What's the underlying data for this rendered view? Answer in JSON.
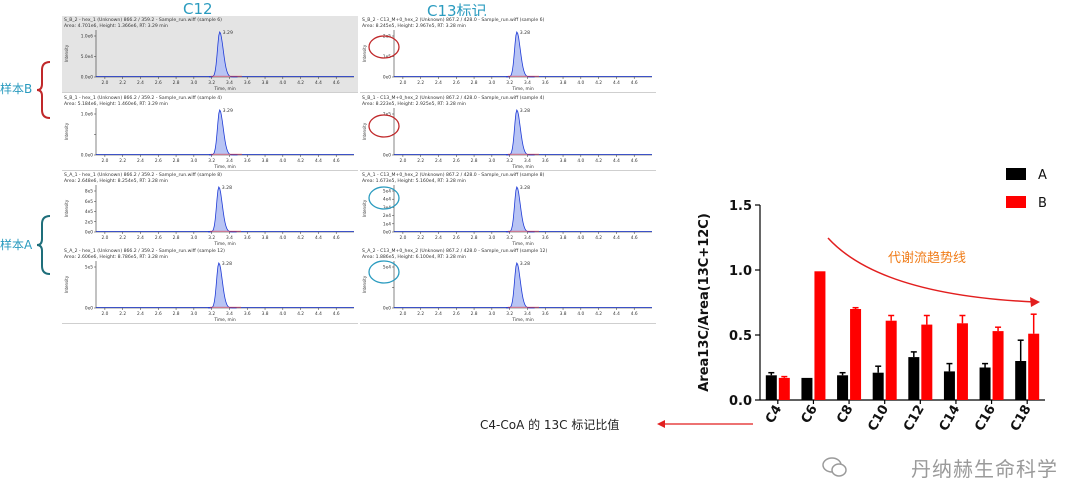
{
  "column_titles": {
    "c12": "C12",
    "c13": "C13标记"
  },
  "sample_labels": {
    "b": "样本B",
    "a": "样本A"
  },
  "panels": {
    "c12": [
      {
        "header1": "S_B_2 - hex_1 (Unknown) 866.2 / 359.2 - Sample_run.wiff (sample 6)",
        "header2": "Area: 4.701e6, Height: 1.366e6, RT: 3.29 min",
        "yticks": [
          "1.0e6",
          "5.0e4",
          "0.0e0"
        ],
        "peak_label": "3.29"
      },
      {
        "header1": "S_B_1 - hex_1 (Unknown) 866.2 / 359.2 - Sample_run.wiff (sample 4)",
        "header2": "Area: 5.184e6, Height: 1.460e6, RT: 3.29 min",
        "yticks": [
          "1.0e6",
          "",
          "0.0e0"
        ],
        "peak_label": "3.29"
      },
      {
        "header1": "S_A_1 - hex_1 (Unknown) 866.2 / 359.2 - Sample_run.wiff (sample 8)",
        "header2": "Area: 2.648e6, Height: 8.254e5, RT: 3.28 min",
        "yticks": [
          "8e5",
          "6e5",
          "4e5",
          "2e5",
          "0e0"
        ],
        "peak_label": "3.28"
      },
      {
        "header1": "S_A_2 - hex_1 (Unknown) 866.2 / 359.2 - Sample_run.wiff (sample 12)",
        "header2": "Area: 2.606e6, Height: 8.786e5, RT: 3.28 min",
        "yticks": [
          "5e5",
          "0e0"
        ],
        "peak_label": "3.28"
      }
    ],
    "c13": [
      {
        "header1": "S_B_2 - C13_M+0_hex_2 (Unknown) 867.2 / 428.0 - Sample_run.wiff (sample 6)",
        "header2": "Area: 8.245e5, Height: 2.967e5, RT: 3.28 min",
        "yticks": [
          "2e5",
          "1e5",
          "0e0"
        ],
        "peak_label": "3.28"
      },
      {
        "header1": "S_B_1 - C13_M+0_hex_2 (Unknown) 867.2 / 428.0 - Sample_run.wiff (sample 4)",
        "header2": "Area: 8.223e5, Height: 2.925e5, RT: 3.28 min",
        "yticks": [
          "2e5",
          "",
          "0e0"
        ],
        "peak_label": "3.28"
      },
      {
        "header1": "S_A_1 - C13_M+0_hex_2 (Unknown) 867.2 / 428.0 - Sample_run.wiff (sample 8)",
        "header2": "Area: 1.673e5, Height: 5.160e4, RT: 3.28 min",
        "yticks": [
          "5e4",
          "4e4",
          "3e4",
          "2e4",
          "1e4",
          "0e0"
        ],
        "peak_label": "3.28"
      },
      {
        "header1": "S_A_2 - C13_M+0_hex_2 (Unknown) 867.2 / 428.0 - Sample_run.wiff (sample 12)",
        "header2": "Area: 1.886e5, Height: 6.100e4, RT: 3.28 min",
        "yticks": [
          "5e4",
          "",
          "0e0"
        ],
        "peak_label": "3.28"
      }
    ],
    "xticks": [
      "2.0",
      "2.2",
      "2.4",
      "2.6",
      "2.8",
      "3.0",
      "3.2",
      "3.4",
      "3.6",
      "3.8",
      "4.0",
      "4.2",
      "4.4",
      "4.6"
    ],
    "xlabel": "Time, min",
    "ylabel": "Intensity"
  },
  "chart_data": {
    "type": "bar",
    "categories": [
      "C4",
      "C6",
      "C8",
      "C10",
      "C12",
      "C14",
      "C16",
      "C18"
    ],
    "series": [
      {
        "name": "A",
        "color": "#000000",
        "values": [
          0.19,
          0.17,
          0.19,
          0.21,
          0.33,
          0.22,
          0.25,
          0.3
        ],
        "errors": [
          0.02,
          0.0,
          0.02,
          0.05,
          0.04,
          0.06,
          0.03,
          0.16
        ]
      },
      {
        "name": "B",
        "color": "#ff0000",
        "values": [
          0.17,
          0.99,
          0.7,
          0.61,
          0.58,
          0.59,
          0.53,
          0.51
        ],
        "errors": [
          0.01,
          0.0,
          0.01,
          0.04,
          0.07,
          0.06,
          0.03,
          0.15
        ]
      }
    ],
    "ylabel": "Area13C/Area(13C+12C)",
    "ylim": [
      0,
      1.5
    ],
    "yticks": [
      "0.0",
      "0.5",
      "1.0",
      "1.5"
    ],
    "legend_position": "top-right",
    "annotation": "代谢流趋势线"
  },
  "side_note": "C4-CoA 的 13C 标记比值",
  "watermark": "丹纳赫生命科学"
}
